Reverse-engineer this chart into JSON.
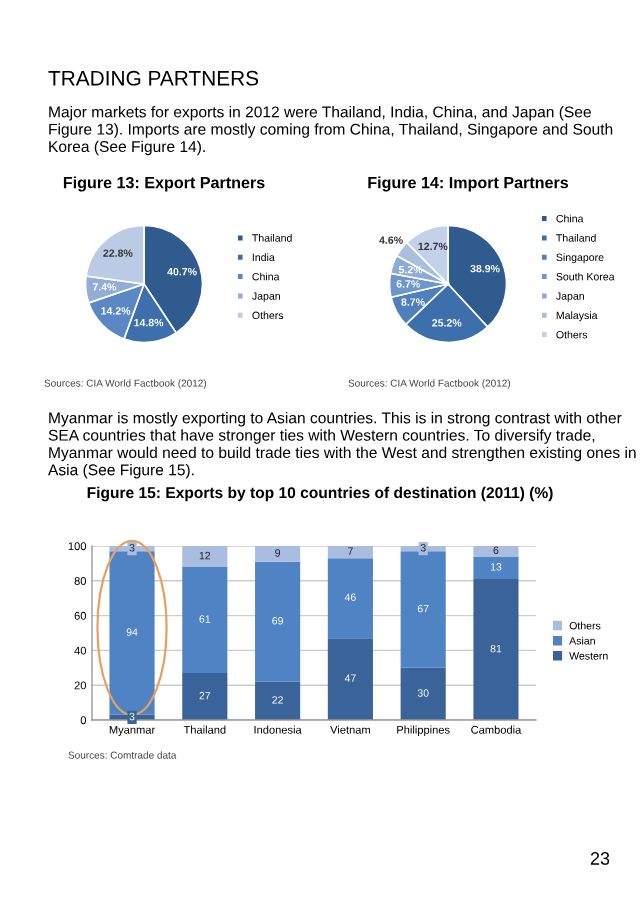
{
  "chart_data": [
    {
      "type": "other",
      "title": "TRADING PARTNERS",
      "annotations": [
        "Major markets for exports in 2012 were Thailand, India, China, and Japan (See Figure 13). Imports are mostly coming from China, Thailand, Singapore and South Korea (See Figure 14)."
      ]
    },
    {
      "type": "pie",
      "title": "Figure 13: Export Partners",
      "categories": [
        "Thailand",
        "India",
        "China",
        "Japan",
        "Others"
      ],
      "values": [
        40.7,
        14.8,
        14.2,
        7.4,
        22.8
      ],
      "value_labels": [
        "40.7%",
        "14.8%",
        "14.2%",
        "7.4%",
        "22.8%"
      ],
      "colors": [
        "#2f5b8e",
        "#3e6fad",
        "#5b88c4",
        "#93aed6",
        "#bccbe5"
      ],
      "legend": "right",
      "annotations": [
        "Sources: CIA World Factbook (2012)"
      ]
    },
    {
      "type": "pie",
      "title": "Figure 14: Import Partners",
      "categories": [
        "China",
        "Thailand",
        "Singapore",
        "South Korea",
        "Japan",
        "Malaysia",
        "Others"
      ],
      "values": [
        38.9,
        25.2,
        8.7,
        6.7,
        5.2,
        4.6,
        12.7
      ],
      "value_labels": [
        "38.9%",
        "25.2%",
        "8.7%",
        "6.7%",
        "5.2%",
        "4.6%",
        "12.7%"
      ],
      "colors": [
        "#2f5b8e",
        "#3e6fad",
        "#4f7fbd",
        "#6e95cc",
        "#8eaad6",
        "#a9bfe0",
        "#c3d1ea"
      ],
      "legend": "right",
      "annotations": [
        "Sources: CIA World Factbook (2012)"
      ]
    },
    {
      "type": "other",
      "annotations": [
        "Myanmar is mostly exporting to Asian countries. This is in strong contrast with other SEA countries that have stronger ties with Western countries. To diversify trade, Myanmar would need to build trade ties with the West and strengthen existing ones in Asia (See Figure 15)."
      ]
    },
    {
      "type": "bar",
      "title": "Figure 15: Exports by top 10 countries of destination (2011) (%)",
      "categories": [
        "Myanmar",
        "Thailand",
        "Indonesia",
        "Vietnam",
        "Philippines",
        "Cambodia"
      ],
      "stacked": true,
      "series": [
        {
          "name": "Western",
          "color": "#3a6499",
          "values": [
            3,
            27,
            22,
            47,
            30,
            81
          ]
        },
        {
          "name": "Asian",
          "color": "#4f83c4",
          "values": [
            94,
            61,
            69,
            46,
            67,
            13
          ]
        },
        {
          "name": "Others",
          "color": "#a9bde0",
          "values": [
            3,
            12,
            9,
            7,
            3,
            6
          ]
        }
      ],
      "data_labels": true,
      "ylim": [
        0,
        100
      ],
      "yticks": [
        0,
        20,
        40,
        60,
        80,
        100
      ],
      "grid": "y",
      "legend": "right",
      "annotations": [
        "Sources: Comtrade data",
        "23"
      ]
    }
  ]
}
